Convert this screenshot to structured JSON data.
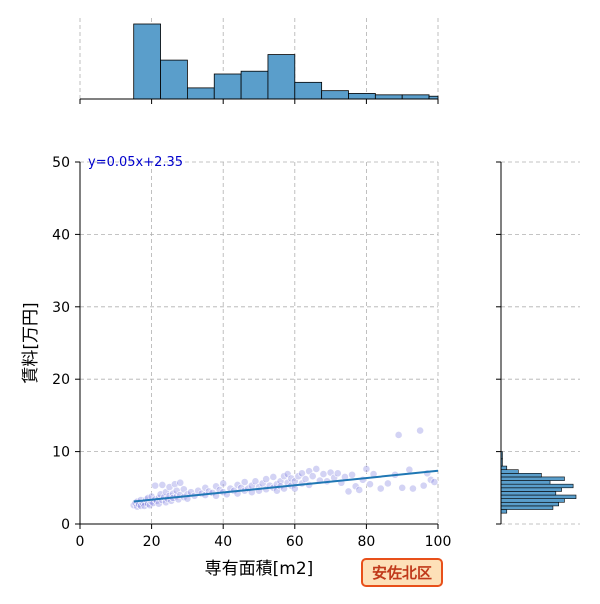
{
  "chart_data": {
    "type": "scatter",
    "subtype": "jointplot",
    "xlabel": "専有面積[m2]",
    "ylabel": "賃料[万円]",
    "xlim": [
      0,
      100
    ],
    "ylim": [
      0,
      50
    ],
    "xticks": [
      0,
      20,
      40,
      60,
      80,
      100
    ],
    "yticks": [
      0,
      10,
      20,
      30,
      40,
      50
    ],
    "grid": true,
    "regression": {
      "label": "y=0.05x+2.35",
      "slope": 0.05,
      "intercept": 2.35,
      "x_range": [
        15,
        100
      ],
      "color": "#1f77b4"
    },
    "badge": "安佐北区",
    "colors": {
      "hist": "#5a9ecb",
      "scatter": "#8080e0",
      "line": "#1f77b4",
      "badge_bg": "#fde0b8",
      "badge_border": "#e8501a",
      "badge_text": "#c0391a",
      "label_text": "#0000cc"
    },
    "scatter_points": [
      [
        15,
        2.6
      ],
      [
        15.5,
        2.9
      ],
      [
        16,
        2.4
      ],
      [
        16,
        3.1
      ],
      [
        16.5,
        2.7
      ],
      [
        17,
        3.3
      ],
      [
        17,
        2.5
      ],
      [
        17.5,
        2.9
      ],
      [
        18,
        3.0
      ],
      [
        18,
        2.5
      ],
      [
        18.5,
        3.4
      ],
      [
        19,
        2.8
      ],
      [
        19,
        3.6
      ],
      [
        19.5,
        2.6
      ],
      [
        20,
        3.1
      ],
      [
        20,
        3.8
      ],
      [
        20.5,
        2.9
      ],
      [
        21,
        3.4
      ],
      [
        21,
        5.3
      ],
      [
        21.5,
        3.2
      ],
      [
        22,
        3.6
      ],
      [
        22,
        2.8
      ],
      [
        22.5,
        4.1
      ],
      [
        23,
        3.3
      ],
      [
        23,
        5.4
      ],
      [
        23.5,
        3.7
      ],
      [
        24,
        3.0
      ],
      [
        24,
        4.4
      ],
      [
        24.5,
        3.5
      ],
      [
        25,
        3.9
      ],
      [
        25,
        5.1
      ],
      [
        25.5,
        3.2
      ],
      [
        26,
        4.2
      ],
      [
        26,
        3.6
      ],
      [
        26.5,
        5.5
      ],
      [
        27,
        3.8
      ],
      [
        27,
        4.6
      ],
      [
        27.5,
        3.4
      ],
      [
        28,
        4.0
      ],
      [
        28,
        5.7
      ],
      [
        29,
        3.7
      ],
      [
        29,
        4.8
      ],
      [
        30,
        4.1
      ],
      [
        30,
        3.5
      ],
      [
        31,
        4.4
      ],
      [
        32,
        3.9
      ],
      [
        33,
        4.6
      ],
      [
        34,
        4.2
      ],
      [
        35,
        4.0
      ],
      [
        35,
        5.0
      ],
      [
        36,
        4.5
      ],
      [
        37,
        4.3
      ],
      [
        38,
        5.2
      ],
      [
        38,
        3.9
      ],
      [
        39,
        4.7
      ],
      [
        40,
        4.4
      ],
      [
        40,
        5.6
      ],
      [
        41,
        4.1
      ],
      [
        42,
        4.9
      ],
      [
        43,
        4.6
      ],
      [
        44,
        5.4
      ],
      [
        44,
        4.2
      ],
      [
        45,
        5.0
      ],
      [
        46,
        4.6
      ],
      [
        46,
        5.8
      ],
      [
        47,
        4.9
      ],
      [
        48,
        5.3
      ],
      [
        48,
        4.4
      ],
      [
        49,
        5.9
      ],
      [
        50,
        5.1
      ],
      [
        50,
        4.6
      ],
      [
        51,
        5.6
      ],
      [
        52,
        4.8
      ],
      [
        52,
        6.2
      ],
      [
        53,
        5.3
      ],
      [
        54,
        5.0
      ],
      [
        54,
        6.5
      ],
      [
        55,
        5.5
      ],
      [
        55,
        4.6
      ],
      [
        56,
        5.9
      ],
      [
        56,
        5.2
      ],
      [
        57,
        6.6
      ],
      [
        57,
        4.9
      ],
      [
        58,
        5.7
      ],
      [
        58,
        6.9
      ],
      [
        59,
        5.3
      ],
      [
        59,
        6.3
      ],
      [
        60,
        5.9
      ],
      [
        60,
        4.9
      ],
      [
        61,
        6.6
      ],
      [
        62,
        5.6
      ],
      [
        62,
        7.0
      ],
      [
        63,
        6.2
      ],
      [
        64,
        7.3
      ],
      [
        64,
        5.4
      ],
      [
        65,
        6.6
      ],
      [
        66,
        7.6
      ],
      [
        67,
        6.0
      ],
      [
        68,
        6.9
      ],
      [
        69,
        5.9
      ],
      [
        70,
        7.1
      ],
      [
        71,
        6.4
      ],
      [
        72,
        7.0
      ],
      [
        73,
        5.7
      ],
      [
        74,
        6.5
      ],
      [
        75,
        4.5
      ],
      [
        76,
        6.8
      ],
      [
        77,
        5.2
      ],
      [
        78,
        4.7
      ],
      [
        79,
        6.1
      ],
      [
        80,
        7.6
      ],
      [
        81,
        5.5
      ],
      [
        82,
        6.9
      ],
      [
        84,
        4.9
      ],
      [
        86,
        5.6
      ],
      [
        88,
        6.8
      ],
      [
        89,
        12.3
      ],
      [
        90,
        5.0
      ],
      [
        92,
        7.5
      ],
      [
        93,
        4.9
      ],
      [
        95,
        12.9
      ],
      [
        96,
        5.3
      ],
      [
        97,
        7.0
      ],
      [
        98,
        6.1
      ],
      [
        99,
        5.8
      ]
    ],
    "top_histogram": {
      "bin_edges": [
        15,
        22.5,
        30,
        37.5,
        45,
        52.5,
        60,
        67.5,
        75,
        82.5,
        90,
        97.5,
        100
      ],
      "counts": [
        27,
        14,
        4,
        9,
        10,
        16,
        6,
        3,
        2,
        1.5,
        1.5,
        1
      ]
    },
    "right_histogram": {
      "bin_edges": [
        1.5,
        2.0,
        2.5,
        3.0,
        3.5,
        4.0,
        4.5,
        5.0,
        5.5,
        6.0,
        6.5,
        7.0,
        7.5,
        8.0,
        9.0,
        10.0
      ],
      "counts": [
        2,
        18,
        20,
        22,
        26,
        19,
        21,
        25,
        17,
        22,
        14,
        6,
        2,
        0.5,
        0.5
      ]
    }
  }
}
